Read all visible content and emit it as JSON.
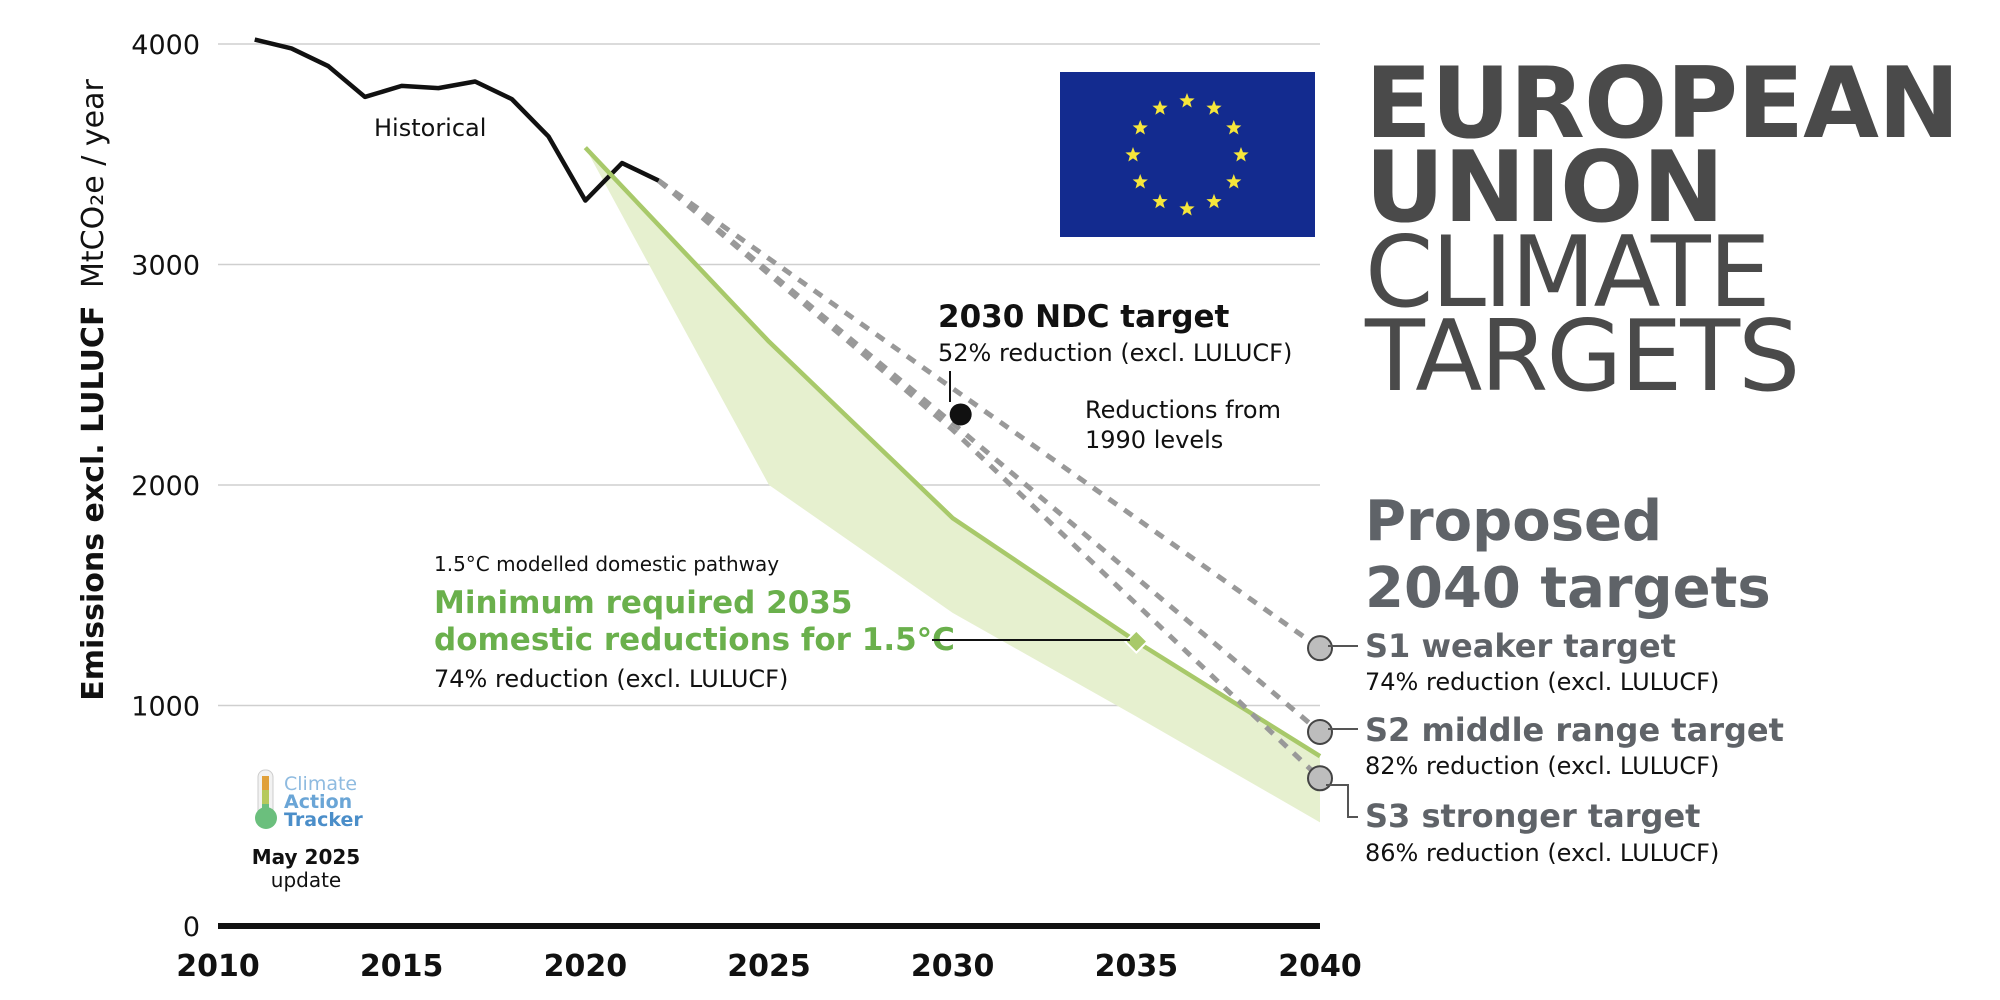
{
  "title": {
    "line1": "EUROPEAN",
    "line2": "UNION",
    "line3": "CLIMATE",
    "line4": "TARGETS"
  },
  "proposed_heading": {
    "line1": "Proposed",
    "line2": "2040 targets"
  },
  "colors": {
    "historical": "#111111",
    "pathway": "#a8c96a",
    "pathway_band": "#e6f0cf",
    "target_line": "#999999",
    "ndc_dot": "#111111",
    "target_circle": "#bdbdbd",
    "minimum_text": "#6ab04c",
    "flag_blue": "#132b8f",
    "flag_star": "#f6e63b",
    "gray_text": "#5f6368",
    "climate_text": "#6aa5d6"
  },
  "annotations": {
    "historical": "Historical",
    "ndc_title": "2030 NDC target",
    "ndc_sub": "52% reduction (excl. LULUCF)",
    "reductions_note_1": "Reductions from",
    "reductions_note_2": "1990 levels",
    "pathway_label": "1.5°C modelled domestic pathway",
    "minimum_1": "Minimum required 2035",
    "minimum_2": "domestic reductions for 1.5°C",
    "minimum_sub": "74% reduction (excl. LULUCF)",
    "s1_title": "S1 weaker target",
    "s1_sub": "74% reduction (excl. LULUCF)",
    "s2_title": "S2 middle range target",
    "s2_sub": "82% reduction (excl. LULUCF)",
    "s3_title": "S3 stronger target",
    "s3_sub": "86% reduction (excl. LULUCF)"
  },
  "logo": {
    "line1": "Climate",
    "line2": "Action",
    "line3": "Tracker",
    "date_bold": "May 2025",
    "date_sub": "update"
  },
  "chart_data": {
    "type": "line",
    "ylabel_bold": "Emissions excl. LULUCF",
    "ylabel_unit": "MtCO₂e / year",
    "xlim": [
      2010,
      2040
    ],
    "ylim": [
      0,
      4000
    ],
    "xticks": [
      "2010",
      "2015",
      "2020",
      "2025",
      "2030",
      "2035",
      "2040"
    ],
    "yticks": [
      "0",
      "1000",
      "2000",
      "3000",
      "4000"
    ],
    "grid": true,
    "series": [
      {
        "name": "Historical",
        "x": [
          2011,
          2012,
          2013,
          2014,
          2015,
          2016,
          2017,
          2018,
          2019,
          2020,
          2021,
          2022
        ],
        "y": [
          4020,
          3980,
          3900,
          3760,
          3810,
          3800,
          3830,
          3750,
          3580,
          3290,
          3460,
          3380
        ]
      },
      {
        "name": "1.5°C modelled domestic pathway",
        "x": [
          2020,
          2025,
          2030,
          2035,
          2040
        ],
        "y": [
          3530,
          2650,
          1850,
          1290,
          770
        ]
      },
      {
        "name": "S1 weaker target",
        "x": [
          2022,
          2040
        ],
        "y": [
          3380,
          1260
        ]
      },
      {
        "name": "S2 middle range target",
        "x": [
          2022,
          2030,
          2040
        ],
        "y": [
          3380,
          2280,
          880
        ]
      },
      {
        "name": "S3 stronger target",
        "x": [
          2022,
          2030,
          2040
        ],
        "y": [
          3380,
          2250,
          670
        ]
      }
    ],
    "pathway_band": {
      "x": [
        2020,
        2025,
        2030,
        2035,
        2040
      ],
      "upper": [
        3530,
        2650,
        1850,
        1290,
        770
      ],
      "lower": [
        3530,
        2000,
        1420,
        950,
        470
      ]
    },
    "points": [
      {
        "name": "2030 NDC target",
        "x": 2030,
        "y": 2320
      },
      {
        "name": "Minimum required 2035",
        "x": 2035,
        "y": 1290
      },
      {
        "name": "S1 weaker target",
        "x": 2040,
        "y": 1260
      },
      {
        "name": "S2 middle range target",
        "x": 2040,
        "y": 880
      },
      {
        "name": "S3 stronger target",
        "x": 2040,
        "y": 670
      }
    ]
  }
}
